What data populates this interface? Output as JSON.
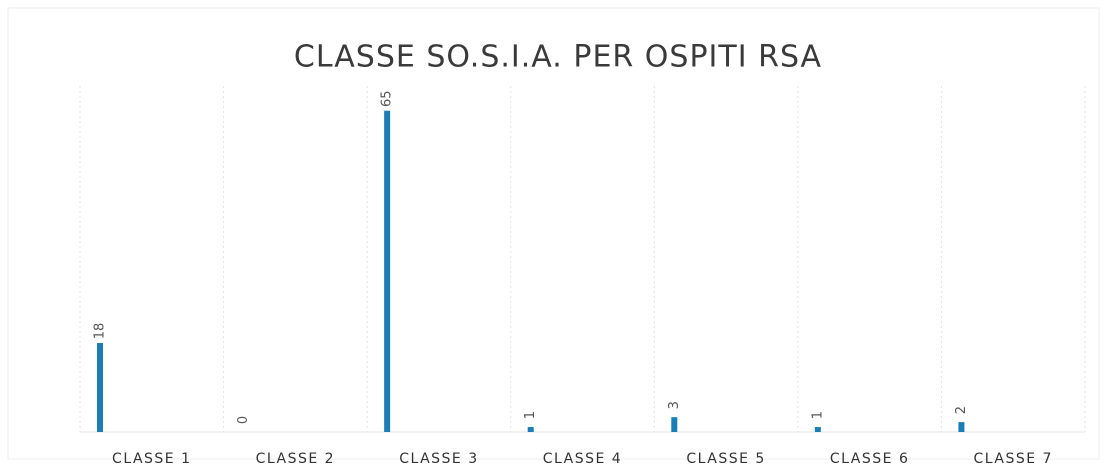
{
  "chart_data": {
    "type": "bar",
    "title": "CLASSE SO.S.I.A. PER OSPITI RSA",
    "categories": [
      "CLASSE 1",
      "CLASSE 2",
      "CLASSE 3",
      "CLASSE 4",
      "CLASSE 5",
      "CLASSE 6",
      "CLASSE 7"
    ],
    "values": [
      18,
      0,
      65,
      1,
      3,
      1,
      2
    ],
    "color": "#1a7db5",
    "ylim": [
      0,
      70
    ]
  }
}
